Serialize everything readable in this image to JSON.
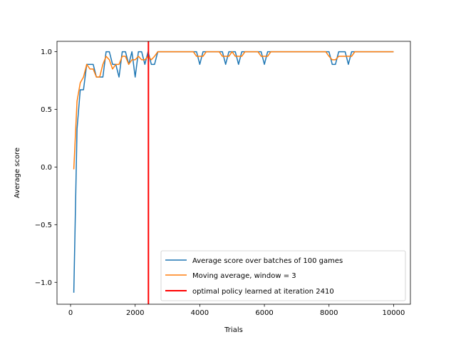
{
  "chart_data": {
    "type": "line",
    "xlabel": "Trials",
    "ylabel": "Average score",
    "xlim": [
      -420,
      10520
    ],
    "ylim": [
      -1.19,
      1.09
    ],
    "xticks": [
      0,
      2000,
      4000,
      6000,
      8000,
      10000
    ],
    "xtick_labels": [
      "0",
      "2000",
      "4000",
      "6000",
      "8000",
      "10000"
    ],
    "yticks": [
      -1.0,
      -0.5,
      0.0,
      0.5,
      1.0
    ],
    "ytick_labels": [
      "−1.0",
      "−0.5",
      "0.0",
      "0.5",
      "1.0"
    ],
    "grid": false,
    "legend_position": "lower-right",
    "x": [
      100,
      200,
      300,
      400,
      500,
      600,
      700,
      800,
      900,
      1000,
      1100,
      1200,
      1300,
      1400,
      1500,
      1600,
      1700,
      1800,
      1900,
      2000,
      2100,
      2200,
      2300,
      2400,
      2500,
      2600,
      2700,
      2800,
      2900,
      3000,
      3100,
      3200,
      3300,
      3400,
      3500,
      3600,
      3700,
      3800,
      3900,
      4000,
      4100,
      4200,
      4300,
      4400,
      4500,
      4600,
      4700,
      4800,
      4900,
      5000,
      5100,
      5200,
      5300,
      5400,
      5500,
      5600,
      5700,
      5800,
      5900,
      6000,
      6100,
      6200,
      6300,
      6400,
      6500,
      6600,
      6700,
      6800,
      6900,
      7000,
      7100,
      7200,
      7300,
      7400,
      7500,
      7600,
      7700,
      7800,
      7900,
      8000,
      8100,
      8200,
      8300,
      8400,
      8500,
      8600,
      8700,
      8800,
      8900,
      9000,
      9100,
      9200,
      9300,
      9400,
      9500,
      9600,
      9700,
      9800,
      9900,
      10000
    ],
    "series": [
      {
        "name": "Average score over batches of 100 games",
        "color": "#1f77b4",
        "values": [
          -1.09,
          0.33,
          0.67,
          0.67,
          0.89,
          0.89,
          0.89,
          0.78,
          0.78,
          0.78,
          1.0,
          1.0,
          0.89,
          0.89,
          0.78,
          1.0,
          1.0,
          0.89,
          1.0,
          0.78,
          1.0,
          1.0,
          0.89,
          1.0,
          0.89,
          0.89,
          1.0,
          1.0,
          1.0,
          1.0,
          1.0,
          1.0,
          1.0,
          1.0,
          1.0,
          1.0,
          1.0,
          1.0,
          1.0,
          0.89,
          1.0,
          1.0,
          1.0,
          1.0,
          1.0,
          1.0,
          1.0,
          0.89,
          1.0,
          1.0,
          1.0,
          0.89,
          1.0,
          1.0,
          1.0,
          1.0,
          1.0,
          1.0,
          1.0,
          0.89,
          1.0,
          1.0,
          1.0,
          1.0,
          1.0,
          1.0,
          1.0,
          1.0,
          1.0,
          1.0,
          1.0,
          1.0,
          1.0,
          1.0,
          1.0,
          1.0,
          1.0,
          1.0,
          1.0,
          1.0,
          0.89,
          0.89,
          1.0,
          1.0,
          1.0,
          0.89,
          1.0,
          1.0,
          1.0,
          1.0,
          1.0,
          1.0,
          1.0,
          1.0,
          1.0,
          1.0,
          1.0,
          1.0,
          1.0,
          1.0
        ]
      },
      {
        "name": "Moving average, window = 3",
        "color": "#ff7f0e",
        "values": [
          -0.02,
          0.57,
          0.73,
          0.78,
          0.89,
          0.85,
          0.85,
          0.78,
          0.78,
          0.89,
          0.96,
          0.93,
          0.85,
          0.89,
          0.89,
          0.96,
          0.96,
          0.89,
          0.93,
          0.93,
          0.96,
          0.93,
          0.93,
          0.96,
          0.93,
          0.96,
          1.0,
          1.0,
          1.0,
          1.0,
          1.0,
          1.0,
          1.0,
          1.0,
          1.0,
          1.0,
          1.0,
          1.0,
          0.96,
          0.96,
          0.96,
          1.0,
          1.0,
          1.0,
          1.0,
          1.0,
          0.96,
          0.96,
          0.96,
          1.0,
          0.96,
          0.96,
          0.96,
          1.0,
          1.0,
          1.0,
          1.0,
          1.0,
          0.96,
          0.96,
          0.96,
          1.0,
          1.0,
          1.0,
          1.0,
          1.0,
          1.0,
          1.0,
          1.0,
          1.0,
          1.0,
          1.0,
          1.0,
          1.0,
          1.0,
          1.0,
          1.0,
          1.0,
          1.0,
          0.96,
          0.93,
          0.93,
          0.96,
          0.96,
          0.96,
          0.96,
          0.96,
          1.0,
          1.0,
          1.0,
          1.0,
          1.0,
          1.0,
          1.0,
          1.0,
          1.0,
          1.0,
          1.0,
          1.0,
          1.0
        ]
      }
    ],
    "vline": {
      "x": 2410,
      "color": "#ff0000",
      "label": "optimal policy learned at iteration 2410"
    }
  }
}
